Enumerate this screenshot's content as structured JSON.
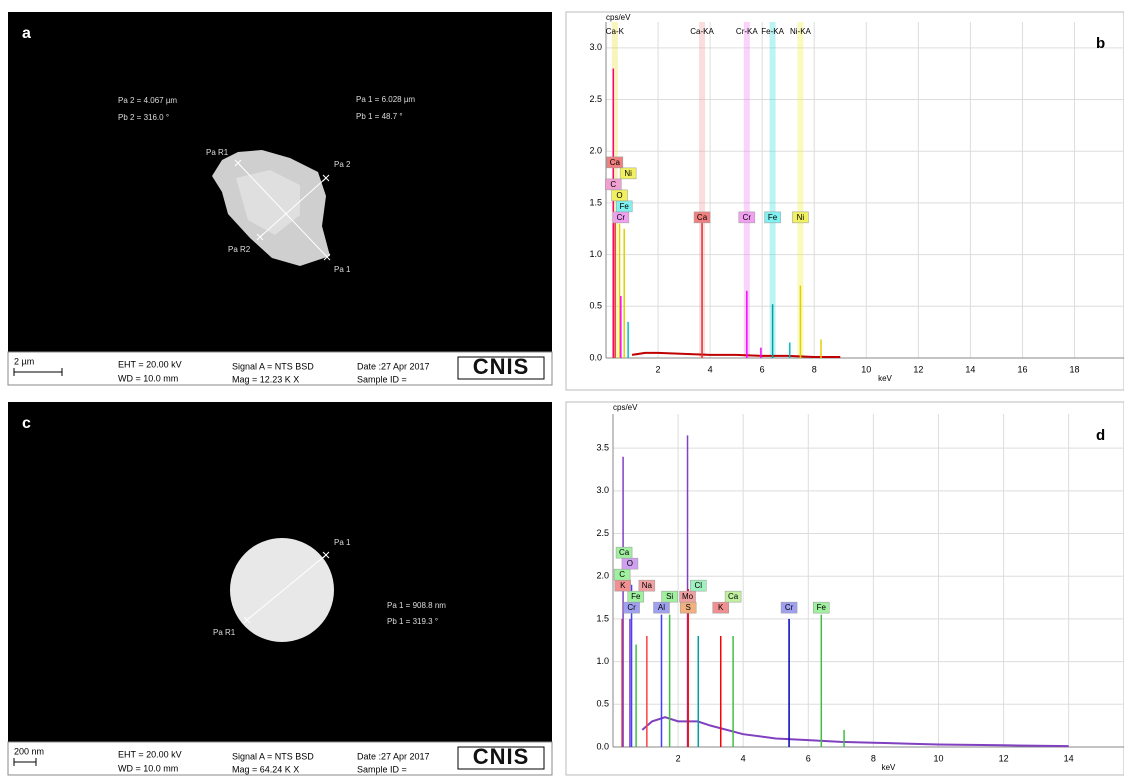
{
  "panels": [
    {
      "label": "a",
      "measurements": [
        "Pa 2 = 4.067 µm",
        "Pb 2 = 316.0 °",
        "Pa 1 = 6.028 µm",
        "Pb 1 =  48.7 °"
      ],
      "markers": [
        "Pa R1",
        "Pa 2",
        "Pa R2",
        "Pa 1"
      ],
      "info": {
        "scale": "2 µm",
        "eht": "EHT = 20.00 kV",
        "wd": "WD = 10.0 mm",
        "signal": "Signal A = NTS BSD",
        "mag": "Mag =  12.23 K X",
        "date": "Date :27 Apr 2017",
        "sample": "Sample ID ="
      },
      "logo": "CNIS"
    },
    {
      "label": "c",
      "measurements": [
        "Pa 1 = 908.8 nm",
        "Pb 1 = 319.3 °"
      ],
      "markers": [
        "Pa 1",
        "Pa R1"
      ],
      "info": {
        "scale": "200 nm",
        "eht": "EHT = 20.00 kV",
        "wd": "WD = 10.0 mm",
        "signal": "Signal A = NTS BSD",
        "mag": "Mag =  64.24 K X",
        "date": "Date :27 Apr 2017",
        "sample": "Sample ID ="
      },
      "logo": "CNIS"
    }
  ],
  "chart_data": [
    {
      "type": "spectrum",
      "label": "b",
      "y_label": "cps/eV",
      "x_label": "keV",
      "xlim": [
        0,
        19.9
      ],
      "xticks": [
        2,
        4,
        6,
        8,
        10,
        12,
        14,
        16,
        18
      ],
      "ylim": [
        0,
        3.25
      ],
      "yticks": [
        {
          "value": 0,
          "label": "0.0"
        },
        {
          "value": 0.5,
          "label": "0.5"
        },
        {
          "value": 1,
          "label": "1.0"
        },
        {
          "value": 1.5,
          "label": "1.5"
        },
        {
          "value": 2,
          "label": "2.0"
        },
        {
          "value": 2.5,
          "label": "2.5"
        },
        {
          "value": 3,
          "label": "3.0"
        }
      ],
      "grid": true,
      "lines": [
        {
          "label": "Ca-K",
          "x": 0.34,
          "color": "#e8e040"
        },
        {
          "label": "Ca-KA",
          "x": 3.69,
          "color": "#f0a0a0"
        },
        {
          "label": "Cr-KA",
          "x": 5.41,
          "color": "#f080f0"
        },
        {
          "label": "Fe-KA",
          "x": 6.4,
          "color": "#40e0e0"
        },
        {
          "label": "Ni-KA",
          "x": 7.47,
          "color": "#f0f040"
        }
      ],
      "elements": [
        {
          "label": "Cr",
          "x": 0.57,
          "color": "#f0a0f0"
        },
        {
          "label": "Fe",
          "x": 0.7,
          "color": "#80f0f0"
        },
        {
          "label": "O",
          "x": 0.52,
          "color": "#f0f060"
        },
        {
          "label": "C",
          "x": 0.28,
          "color": "#f0a0d0"
        },
        {
          "label": "Ni",
          "x": 0.85,
          "color": "#f0f060"
        },
        {
          "label": "Ca",
          "x": 0.34,
          "color": "#f08080"
        },
        {
          "label": "Ca",
          "x": 3.69,
          "color": "#f08080"
        },
        {
          "label": "Cr",
          "x": 5.41,
          "color": "#f0a0f0"
        },
        {
          "label": "Fe",
          "x": 6.4,
          "color": "#80f0f0"
        },
        {
          "label": "Ni",
          "x": 7.47,
          "color": "#f0f060"
        }
      ],
      "peaks": [
        {
          "x": 0.28,
          "value": 2.8,
          "color": "#ff0080"
        },
        {
          "x": 0.35,
          "value": 1.35,
          "color": "#e03030"
        },
        {
          "x": 0.52,
          "value": 1.3,
          "color": "#e0d000"
        },
        {
          "x": 0.57,
          "value": 0.6,
          "color": "#ff00ff"
        },
        {
          "x": 0.7,
          "value": 1.25,
          "color": "#e0d000"
        },
        {
          "x": 0.85,
          "value": 0.35,
          "color": "#00c0c0"
        },
        {
          "x": 3.69,
          "value": 1.35,
          "color": "#e03030"
        },
        {
          "x": 5.41,
          "value": 0.65,
          "color": "#ff00ff"
        },
        {
          "x": 5.95,
          "value": 0.1,
          "color": "#ff00ff"
        },
        {
          "x": 6.4,
          "value": 0.52,
          "color": "#00a0a0"
        },
        {
          "x": 7.06,
          "value": 0.15,
          "color": "#00c0c0"
        },
        {
          "x": 7.47,
          "value": 0.7,
          "color": "#e0d000"
        },
        {
          "x": 8.26,
          "value": 0.18,
          "color": "#e0d000"
        }
      ],
      "background": {
        "color": "#c00000",
        "x": [
          1,
          1.5,
          2,
          3,
          4,
          5,
          6,
          7,
          8,
          9
        ],
        "values": [
          0.03,
          0.05,
          0.05,
          0.04,
          0.03,
          0.03,
          0.02,
          0.02,
          0.01,
          0.01
        ]
      }
    },
    {
      "type": "spectrum",
      "label": "d",
      "y_label": "cps/eV",
      "x_label": "keV",
      "xlim": [
        0,
        15.7
      ],
      "xticks": [
        2,
        4,
        6,
        8,
        10,
        12,
        14
      ],
      "ylim": [
        0,
        3.9
      ],
      "yticks": [
        {
          "value": 0,
          "label": "0.0"
        },
        {
          "value": 0.5,
          "label": "0.5"
        },
        {
          "value": 1,
          "label": "1.0"
        },
        {
          "value": 1.5,
          "label": "1.5"
        },
        {
          "value": 2,
          "label": "2.0"
        },
        {
          "value": 2.5,
          "label": "2.5"
        },
        {
          "value": 3,
          "label": "3.0"
        },
        {
          "value": 3.5,
          "label": "3.5"
        }
      ],
      "grid": true,
      "lines": [],
      "elements": [
        {
          "label": "Cr",
          "x": 0.57,
          "color": "#a0a0f0"
        },
        {
          "label": "Fe",
          "x": 0.7,
          "color": "#a0f0a0"
        },
        {
          "label": "K",
          "x": 0.3,
          "color": "#f09090"
        },
        {
          "label": "C",
          "x": 0.28,
          "color": "#a0f0a0"
        },
        {
          "label": "O",
          "x": 0.52,
          "color": "#d0a0f0"
        },
        {
          "label": "Ca",
          "x": 0.34,
          "color": "#a0f0a0"
        },
        {
          "label": "Na",
          "x": 1.04,
          "color": "#f0a0a0"
        },
        {
          "label": "Al",
          "x": 1.49,
          "color": "#a0a0f0"
        },
        {
          "label": "Si",
          "x": 1.74,
          "color": "#a0f0a0"
        },
        {
          "label": "S",
          "x": 2.31,
          "color": "#f0b080"
        },
        {
          "label": "Mo",
          "x": 2.29,
          "color": "#f0a0a0"
        },
        {
          "label": "Cl",
          "x": 2.62,
          "color": "#a0f0c0"
        },
        {
          "label": "K",
          "x": 3.31,
          "color": "#f09090"
        },
        {
          "label": "Ca",
          "x": 3.69,
          "color": "#c0f0a0"
        },
        {
          "label": "Cr",
          "x": 5.41,
          "color": "#a0a0f0"
        },
        {
          "label": "Fe",
          "x": 6.4,
          "color": "#a0f0a0"
        }
      ],
      "peaks": [
        {
          "x": 0.28,
          "value": 1.5,
          "color": "#e03030"
        },
        {
          "x": 0.31,
          "value": 3.4,
          "color": "#8040c0"
        },
        {
          "x": 0.52,
          "value": 1.5,
          "color": "#8040c0"
        },
        {
          "x": 0.57,
          "value": 1.9,
          "color": "#4040ff"
        },
        {
          "x": 0.71,
          "value": 1.2,
          "color": "#40c040"
        },
        {
          "x": 1.04,
          "value": 1.3,
          "color": "#ff4040"
        },
        {
          "x": 1.49,
          "value": 1.55,
          "color": "#4040ff"
        },
        {
          "x": 1.74,
          "value": 1.55,
          "color": "#40c040"
        },
        {
          "x": 2.29,
          "value": 3.65,
          "color": "#8040c0"
        },
        {
          "x": 2.31,
          "value": 1.85,
          "color": "#ff0000"
        },
        {
          "x": 2.62,
          "value": 1.3,
          "color": "#00a0a0"
        },
        {
          "x": 3.31,
          "value": 1.3,
          "color": "#ff0000"
        },
        {
          "x": 3.69,
          "value": 1.3,
          "color": "#40c040"
        },
        {
          "x": 5.41,
          "value": 1.5,
          "color": "#0000c0"
        },
        {
          "x": 6.4,
          "value": 1.55,
          "color": "#40c040"
        },
        {
          "x": 7.1,
          "value": 0.2,
          "color": "#40c040"
        }
      ],
      "background": {
        "color": "#8040c0",
        "x": [
          0.9,
          1.2,
          1.6,
          2,
          2.6,
          3,
          4,
          5,
          6,
          7,
          8,
          9,
          10,
          12,
          14
        ],
        "values": [
          0.2,
          0.3,
          0.35,
          0.3,
          0.3,
          0.25,
          0.15,
          0.1,
          0.08,
          0.06,
          0.05,
          0.04,
          0.03,
          0.02,
          0.01
        ]
      }
    }
  ]
}
